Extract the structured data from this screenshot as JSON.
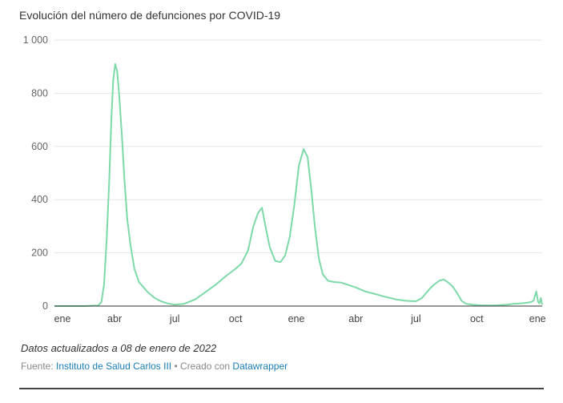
{
  "title": "Evolución del número de defunciones por COVID-19",
  "footer": {
    "updated": "Datos actualizados a 08 de enero de 2022",
    "source_label": "Fuente:",
    "source_name": "Instituto de Salud Carlos III",
    "separator": "•",
    "created_label": "Creado con",
    "created_tool": "Datawrapper"
  },
  "colors": {
    "line": "#7dd9a8",
    "grid": "#e6e6e6",
    "baseline": "#333333"
  },
  "chart_data": {
    "type": "line",
    "title": "Evolución del número de defunciones por COVID-19",
    "xlabel": "",
    "ylabel": "",
    "x_ticks": [
      "ene",
      "abr",
      "jul",
      "oct",
      "ene",
      "abr",
      "jul",
      "oct",
      "ene"
    ],
    "y_ticks": [
      {
        "value": 0,
        "label": "0"
      },
      {
        "value": 200,
        "label": "200"
      },
      {
        "value": 400,
        "label": "400"
      },
      {
        "value": 600,
        "label": "600"
      },
      {
        "value": 800,
        "label": "800"
      },
      {
        "value": 1000,
        "label": "1 000"
      }
    ],
    "ylim": [
      0,
      1000
    ],
    "xlim": [
      "2020-01-01",
      "2022-01-08"
    ],
    "grid": true,
    "series": [
      {
        "x": [
          "2020-01-01",
          "2020-02-15",
          "2020-03-07",
          "2020-03-12",
          "2020-03-16",
          "2020-03-20",
          "2020-03-24",
          "2020-03-27",
          "2020-03-30",
          "2020-04-02",
          "2020-04-05",
          "2020-04-08",
          "2020-04-12",
          "2020-04-16",
          "2020-04-20",
          "2020-04-25",
          "2020-05-01",
          "2020-05-08",
          "2020-05-15",
          "2020-05-22",
          "2020-06-01",
          "2020-06-10",
          "2020-06-20",
          "2020-07-01",
          "2020-07-15",
          "2020-08-01",
          "2020-08-15",
          "2020-09-01",
          "2020-09-15",
          "2020-10-01",
          "2020-10-10",
          "2020-10-20",
          "2020-10-28",
          "2020-11-04",
          "2020-11-10",
          "2020-11-16",
          "2020-11-22",
          "2020-11-30",
          "2020-12-08",
          "2020-12-15",
          "2020-12-22",
          "2020-12-29",
          "2021-01-05",
          "2021-01-12",
          "2021-01-18",
          "2021-01-24",
          "2021-01-29",
          "2021-02-04",
          "2021-02-10",
          "2021-02-18",
          "2021-02-28",
          "2021-03-10",
          "2021-03-20",
          "2021-04-01",
          "2021-04-15",
          "2021-05-01",
          "2021-05-15",
          "2021-06-01",
          "2021-06-15",
          "2021-07-01",
          "2021-07-10",
          "2021-07-20",
          "2021-07-28",
          "2021-08-05",
          "2021-08-12",
          "2021-08-18",
          "2021-08-25",
          "2021-09-01",
          "2021-09-08",
          "2021-09-15",
          "2021-09-25",
          "2021-10-05",
          "2021-10-20",
          "2021-11-01",
          "2021-11-15",
          "2021-11-25",
          "2021-12-05",
          "2021-12-15",
          "2021-12-22",
          "2021-12-26",
          "2021-12-30",
          "2022-01-02",
          "2022-01-04",
          "2022-01-06",
          "2022-01-08"
        ],
        "y": [
          0,
          0,
          2,
          15,
          80,
          250,
          480,
          700,
          850,
          910,
          880,
          790,
          640,
          470,
          330,
          230,
          140,
          90,
          70,
          50,
          30,
          18,
          10,
          5,
          8,
          25,
          50,
          80,
          110,
          140,
          160,
          210,
          300,
          350,
          370,
          290,
          220,
          170,
          165,
          190,
          260,
          380,
          530,
          590,
          560,
          430,
          300,
          180,
          120,
          95,
          90,
          88,
          80,
          70,
          55,
          45,
          35,
          25,
          20,
          18,
          30,
          60,
          80,
          95,
          100,
          90,
          75,
          50,
          20,
          8,
          5,
          3,
          2,
          3,
          5,
          8,
          10,
          12,
          15,
          20,
          55,
          15,
          10,
          30,
          5
        ]
      }
    ]
  }
}
